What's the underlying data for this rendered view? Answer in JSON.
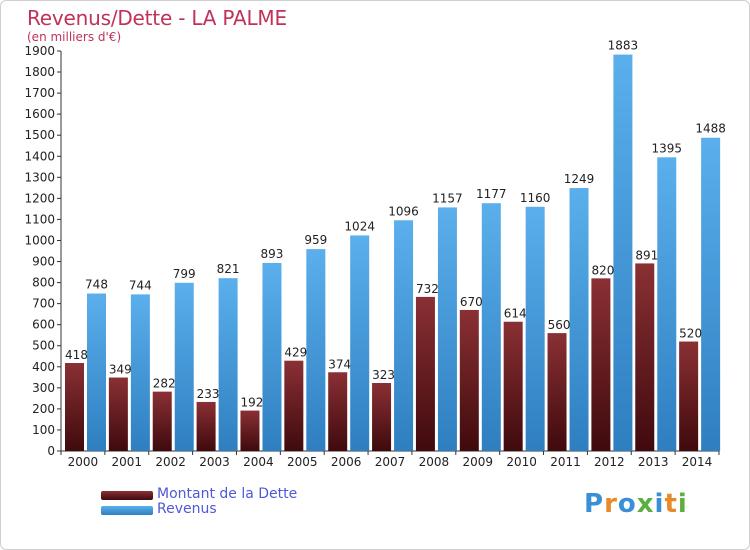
{
  "header": {
    "title": "Revenus/Dette - LA PALME",
    "subtitle": "(en milliers d'€)"
  },
  "colors": {
    "dette": "#7a1f24",
    "dette_gradient_top": "#8a3034",
    "dette_gradient_bottom": "#3f0a0d",
    "revenus": "#4da3e0",
    "revenus_gradient_top": "#5aafec",
    "revenus_gradient_bottom": "#2f7fc0",
    "title": "#c0325a",
    "legend_text": "#4f58d8"
  },
  "legend": {
    "items": [
      {
        "label": "Montant de la Dette",
        "color": "#6e1a1f"
      },
      {
        "label": "Revenus",
        "color": "#4da3e0"
      }
    ]
  },
  "logo": {
    "text": "Proxiti",
    "letter_colors": [
      "#3a8fd6",
      "#e8892a",
      "#3a8fd6",
      "#5cb040",
      "#3a8fd6",
      "#e8892a",
      "#5cb040"
    ]
  },
  "chart_data": {
    "type": "bar",
    "title": "Revenus/Dette - LA PALME",
    "subtitle": "(en milliers d'€)",
    "categories": [
      "2000",
      "2001",
      "2002",
      "2003",
      "2004",
      "2005",
      "2006",
      "2007",
      "2008",
      "2009",
      "2010",
      "2011",
      "2012",
      "2013",
      "2014"
    ],
    "series": [
      {
        "name": "Montant de la Dette",
        "values": [
          418,
          349,
          282,
          233,
          192,
          429,
          374,
          323,
          732,
          670,
          614,
          560,
          820,
          891,
          520
        ]
      },
      {
        "name": "Revenus",
        "values": [
          748,
          744,
          799,
          821,
          893,
          959,
          1024,
          1096,
          1157,
          1177,
          1160,
          1249,
          1883,
          1395,
          1488
        ]
      }
    ],
    "ylim": [
      0,
      1900
    ],
    "yticks": [
      0,
      100,
      200,
      300,
      400,
      500,
      600,
      700,
      800,
      900,
      1000,
      1100,
      1200,
      1300,
      1400,
      1500,
      1600,
      1700,
      1800,
      1900
    ],
    "grid": false,
    "legend_position": "bottom-left"
  }
}
